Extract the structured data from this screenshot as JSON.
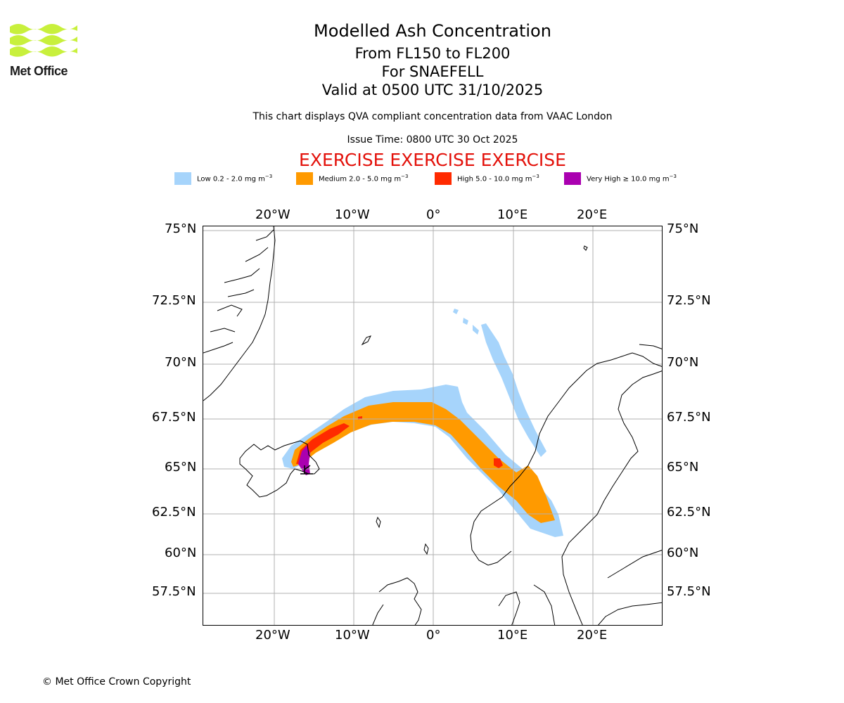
{
  "logo": {
    "text": "Met Office",
    "colors": {
      "waves": "#c8f03c",
      "text": "#1b1b1b"
    }
  },
  "header": {
    "title": "Modelled Ash Concentration",
    "levels": "From FL150 to FL200",
    "volcano": "For SNAEFELL",
    "valid": "Valid at 0500 UTC 31/10/2025",
    "compliance_note": "This chart displays QVA compliant concentration data from VAAC London",
    "issue_time": "Issue Time: 0800 UTC 30 Oct 2025",
    "exercise_banner": "EXERCISE EXERCISE EXERCISE"
  },
  "legend": [
    {
      "label": "Low 0.2 - 2.0 mg m",
      "unit_exp": "−3",
      "color": "#a6d4fb"
    },
    {
      "label": "Medium 2.0 - 5.0 mg m",
      "unit_exp": "−3",
      "color": "#ff9a00"
    },
    {
      "label": "High 5.0 - 10.0 mg m",
      "unit_exp": "−3",
      "color": "#ff2a00"
    },
    {
      "label": "Very High  ≥  10.0 mg m",
      "unit_exp": "−3",
      "color": "#aa00b0"
    }
  ],
  "map": {
    "lon_ticks": [
      "20°W",
      "10°W",
      "0°",
      "10°E",
      "20°E"
    ],
    "lat_ticks": [
      "75°N",
      "72.5°N",
      "70°N",
      "67.5°N",
      "65°N",
      "62.5°N",
      "60°N",
      "57.5°N"
    ],
    "gridlines": true,
    "coastline_color": "#000000",
    "grid_color": "#b0b0b0"
  },
  "footer": {
    "copyright": "© Met Office Crown Copyright"
  }
}
